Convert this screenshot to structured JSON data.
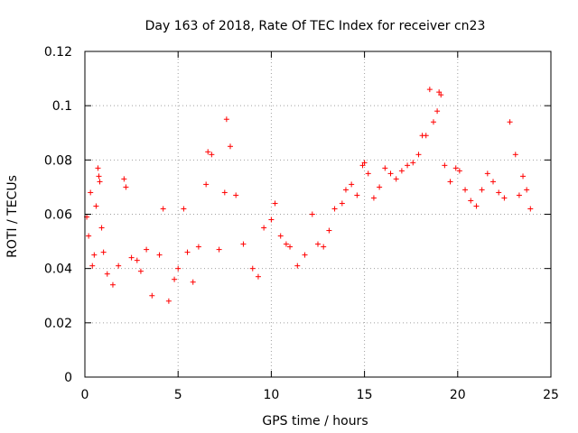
{
  "chart_data": {
    "type": "scatter",
    "title": "Day 163 of 2018, Rate Of TEC Index for receiver cn23",
    "xlabel": "GPS time / hours",
    "ylabel": "ROTI / TECUs",
    "xlim": [
      0,
      25
    ],
    "ylim": [
      0,
      0.12
    ],
    "x_ticks": [
      0,
      5,
      10,
      15,
      20,
      25
    ],
    "x_tick_labels": [
      "0",
      "5",
      "10",
      "15",
      "20",
      "25"
    ],
    "y_ticks": [
      0,
      0.02,
      0.04,
      0.06,
      0.08,
      0.1,
      0.12
    ],
    "y_tick_labels": [
      "0",
      "0.02",
      "0.04",
      "0.06",
      "0.08",
      "0.1",
      "0.12"
    ],
    "grid": true,
    "marker": "+",
    "color": "#ff0000",
    "series": [
      {
        "name": "ROTI",
        "x": [
          0.1,
          0.2,
          0.3,
          0.4,
          0.5,
          0.6,
          0.7,
          0.75,
          0.8,
          0.9,
          1.0,
          1.2,
          1.5,
          1.8,
          2.1,
          2.2,
          2.5,
          2.8,
          3.0,
          3.3,
          3.6,
          4.0,
          4.2,
          4.5,
          4.8,
          5.0,
          5.3,
          5.5,
          5.8,
          6.1,
          6.5,
          6.6,
          6.8,
          7.2,
          7.5,
          7.6,
          7.8,
          8.1,
          8.5,
          9.0,
          9.3,
          9.6,
          10.0,
          10.2,
          10.5,
          10.8,
          11.0,
          11.4,
          11.8,
          12.2,
          12.5,
          12.8,
          13.1,
          13.4,
          13.8,
          14.0,
          14.3,
          14.6,
          14.9,
          15.0,
          15.2,
          15.5,
          15.8,
          16.1,
          16.4,
          16.7,
          17.0,
          17.3,
          17.6,
          17.9,
          18.1,
          18.3,
          18.5,
          18.7,
          18.9,
          19.0,
          19.1,
          19.3,
          19.6,
          19.9,
          20.1,
          20.4,
          20.7,
          21.0,
          21.3,
          21.6,
          21.9,
          22.2,
          22.5,
          22.8,
          23.1,
          23.3,
          23.5,
          23.7,
          23.9
        ],
        "y": [
          0.059,
          0.052,
          0.068,
          0.041,
          0.045,
          0.063,
          0.077,
          0.074,
          0.072,
          0.055,
          0.046,
          0.038,
          0.034,
          0.041,
          0.073,
          0.07,
          0.044,
          0.043,
          0.039,
          0.047,
          0.03,
          0.045,
          0.062,
          0.028,
          0.036,
          0.04,
          0.062,
          0.046,
          0.035,
          0.048,
          0.071,
          0.083,
          0.082,
          0.047,
          0.068,
          0.095,
          0.085,
          0.067,
          0.049,
          0.04,
          0.037,
          0.055,
          0.058,
          0.064,
          0.052,
          0.049,
          0.048,
          0.041,
          0.045,
          0.06,
          0.049,
          0.048,
          0.054,
          0.062,
          0.064,
          0.069,
          0.071,
          0.067,
          0.078,
          0.079,
          0.075,
          0.066,
          0.07,
          0.077,
          0.075,
          0.073,
          0.076,
          0.078,
          0.079,
          0.082,
          0.089,
          0.089,
          0.106,
          0.094,
          0.098,
          0.105,
          0.104,
          0.078,
          0.072,
          0.077,
          0.076,
          0.069,
          0.065,
          0.063,
          0.069,
          0.075,
          0.072,
          0.068,
          0.066,
          0.094,
          0.082,
          0.067,
          0.074,
          0.069,
          0.062
        ]
      }
    ]
  }
}
